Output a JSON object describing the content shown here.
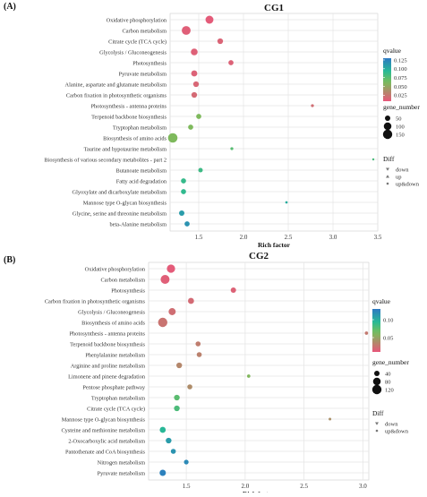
{
  "chart_data": [
    {
      "panel_label": "(A)",
      "type": "scatter",
      "title": "CG1",
      "xlabel": "Rich factor",
      "xlim": [
        1.18,
        3.5
      ],
      "xticks": [
        "1.5",
        "2.0",
        "2.5",
        "3.0",
        "3.5"
      ],
      "xtick_values": [
        1.5,
        2.0,
        2.5,
        3.0,
        3.5
      ],
      "grid": true,
      "points": [
        {
          "pathway": "Oxidative phosphorylation",
          "rich_factor": 1.62,
          "qvalue": 0.01,
          "gene_number": 110
        },
        {
          "pathway": "Carbon metabolism",
          "rich_factor": 1.36,
          "qvalue": 0.012,
          "gene_number": 135
        },
        {
          "pathway": "Citrate cycle (TCA cycle)",
          "rich_factor": 1.74,
          "qvalue": 0.015,
          "gene_number": 55
        },
        {
          "pathway": "Glycolysis / Gluconeogenesis",
          "rich_factor": 1.45,
          "qvalue": 0.013,
          "gene_number": 80
        },
        {
          "pathway": "Photosynthesis",
          "rich_factor": 1.86,
          "qvalue": 0.014,
          "gene_number": 45
        },
        {
          "pathway": "Pyruvate metabolism",
          "rich_factor": 1.45,
          "qvalue": 0.014,
          "gene_number": 65
        },
        {
          "pathway": "Alanine, aspartate and glutamate metabolism",
          "rich_factor": 1.47,
          "qvalue": 0.016,
          "gene_number": 55
        },
        {
          "pathway": "Carbon fixation in photosynthetic organisms",
          "rich_factor": 1.45,
          "qvalue": 0.018,
          "gene_number": 55
        },
        {
          "pathway": "Photosynthesis - antenna proteins",
          "rich_factor": 2.77,
          "qvalue": 0.02,
          "gene_number": 15
        },
        {
          "pathway": "Terpenoid backbone biosynthesis",
          "rich_factor": 1.5,
          "qvalue": 0.06,
          "gene_number": 45
        },
        {
          "pathway": "Tryptophan metabolism",
          "rich_factor": 1.41,
          "qvalue": 0.06,
          "gene_number": 45
        },
        {
          "pathway": "Biosynthesis of amino acids",
          "rich_factor": 1.21,
          "qvalue": 0.06,
          "gene_number": 155
        },
        {
          "pathway": "Taurine and hypotaurine metabolism",
          "rich_factor": 1.87,
          "qvalue": 0.075,
          "gene_number": 15
        },
        {
          "pathway": "Biosynthesis of various secondary metabolites - part 2",
          "rich_factor": 3.45,
          "qvalue": 0.08,
          "gene_number": 8
        },
        {
          "pathway": "Butanoate metabolism",
          "rich_factor": 1.52,
          "qvalue": 0.085,
          "gene_number": 35
        },
        {
          "pathway": "Fatty acid degradation",
          "rich_factor": 1.33,
          "qvalue": 0.088,
          "gene_number": 45
        },
        {
          "pathway": "Glyoxylate and dicarboxylate metabolism",
          "rich_factor": 1.33,
          "qvalue": 0.09,
          "gene_number": 45
        },
        {
          "pathway": "Mannose type O-glycan biosynthesis",
          "rich_factor": 2.48,
          "qvalue": 0.1,
          "gene_number": 10
        },
        {
          "pathway": "Glycine, serine and threonine metabolism",
          "rich_factor": 1.31,
          "qvalue": 0.11,
          "gene_number": 50
        },
        {
          "pathway": "beta-Alanine metabolism",
          "rich_factor": 1.37,
          "qvalue": 0.115,
          "gene_number": 45
        }
      ],
      "legend": {
        "qvalue_title": "qvalue",
        "qvalue_ticks": [
          "0.125",
          "0.100",
          "0.075",
          "0.050",
          "0.025"
        ],
        "qvalue_tick_values": [
          0.125,
          0.1,
          0.075,
          0.05,
          0.025
        ],
        "qvalue_range": [
          0.008,
          0.13
        ],
        "size_title": "gene_number",
        "size_items": [
          {
            "label": "50",
            "value": 50
          },
          {
            "label": "100",
            "value": 100
          },
          {
            "label": "150",
            "value": 150
          }
        ],
        "diff_title": "Diff",
        "diff_items": [
          {
            "label": "down",
            "marker": "triangle-down"
          },
          {
            "label": "up",
            "marker": "triangle-up"
          },
          {
            "label": "up&down",
            "marker": "circle"
          }
        ]
      }
    },
    {
      "panel_label": "(B)",
      "type": "scatter",
      "title": "CG2",
      "xlabel": "Rich factor",
      "xlim": [
        1.18,
        3.05
      ],
      "xticks": [
        "1.5",
        "2.0",
        "2.5",
        "3.0"
      ],
      "xtick_values": [
        1.5,
        2.0,
        2.5,
        3.0
      ],
      "grid": true,
      "points": [
        {
          "pathway": "Oxidative phosphorylation",
          "rich_factor": 1.37,
          "qvalue": 0.012,
          "gene_number": 95
        },
        {
          "pathway": "Carbon metabolism",
          "rich_factor": 1.32,
          "qvalue": 0.014,
          "gene_number": 110
        },
        {
          "pathway": "Photosynthesis",
          "rich_factor": 1.9,
          "qvalue": 0.016,
          "gene_number": 40
        },
        {
          "pathway": "Carbon fixation in photosynthetic organisms",
          "rich_factor": 1.54,
          "qvalue": 0.02,
          "gene_number": 50
        },
        {
          "pathway": "Glycolysis / Gluconeogenesis",
          "rich_factor": 1.38,
          "qvalue": 0.022,
          "gene_number": 70
        },
        {
          "pathway": "Biosynthesis of amino acids",
          "rich_factor": 1.3,
          "qvalue": 0.025,
          "gene_number": 120
        },
        {
          "pathway": "Photosynthesis - antenna proteins",
          "rich_factor": 3.03,
          "qvalue": 0.028,
          "gene_number": 15
        },
        {
          "pathway": "Terpenoid backbone biosynthesis",
          "rich_factor": 1.6,
          "qvalue": 0.03,
          "gene_number": 35
        },
        {
          "pathway": "Phenylalanine metabolism",
          "rich_factor": 1.61,
          "qvalue": 0.032,
          "gene_number": 35
        },
        {
          "pathway": "Arginine and proline metabolism",
          "rich_factor": 1.44,
          "qvalue": 0.035,
          "gene_number": 45
        },
        {
          "pathway": "Limonene and pinene degradation",
          "rich_factor": 2.03,
          "qvalue": 0.06,
          "gene_number": 15
        },
        {
          "pathway": "Pentose phosphate pathway",
          "rich_factor": 1.53,
          "qvalue": 0.038,
          "gene_number": 35
        },
        {
          "pathway": "Tryptophan metabolism",
          "rich_factor": 1.42,
          "qvalue": 0.075,
          "gene_number": 45
        },
        {
          "pathway": "Citrate cycle (TCA cycle)",
          "rich_factor": 1.42,
          "qvalue": 0.08,
          "gene_number": 45
        },
        {
          "pathway": "Mannose type O-glycan biosynthesis",
          "rich_factor": 2.72,
          "qvalue": 0.04,
          "gene_number": 10
        },
        {
          "pathway": "Cysteine and methionine metabolism",
          "rich_factor": 1.3,
          "qvalue": 0.095,
          "gene_number": 50
        },
        {
          "pathway": "2-Oxocarboxylic acid metabolism",
          "rich_factor": 1.35,
          "qvalue": 0.11,
          "gene_number": 45
        },
        {
          "pathway": "Pantothenate and CoA biosynthesis",
          "rich_factor": 1.39,
          "qvalue": 0.115,
          "gene_number": 35
        },
        {
          "pathway": "Nitrogen metabolism",
          "rich_factor": 1.5,
          "qvalue": 0.12,
          "gene_number": 30
        },
        {
          "pathway": "Pyruvate metabolism",
          "rich_factor": 1.3,
          "qvalue": 0.125,
          "gene_number": 55
        }
      ],
      "legend": {
        "qvalue_title": "qvalue",
        "qvalue_ticks": [
          "0.10",
          "0.05"
        ],
        "qvalue_tick_values": [
          0.1,
          0.05
        ],
        "qvalue_range": [
          0.01,
          0.13
        ],
        "size_title": "gene_number",
        "size_items": [
          {
            "label": "40",
            "value": 40
          },
          {
            "label": "80",
            "value": 80
          },
          {
            "label": "120",
            "value": 120
          }
        ],
        "diff_title": "Diff",
        "diff_items": [
          {
            "label": "down",
            "marker": "triangle-down"
          },
          {
            "label": "up&down",
            "marker": "circle"
          }
        ]
      }
    }
  ],
  "colors": {
    "low_qvalue": "#e8577a",
    "mid_qvalue": "#3fbf7f",
    "high_qvalue": "#2f7fbf",
    "grid": "#e4e4e4",
    "axis_text": "#333333"
  }
}
